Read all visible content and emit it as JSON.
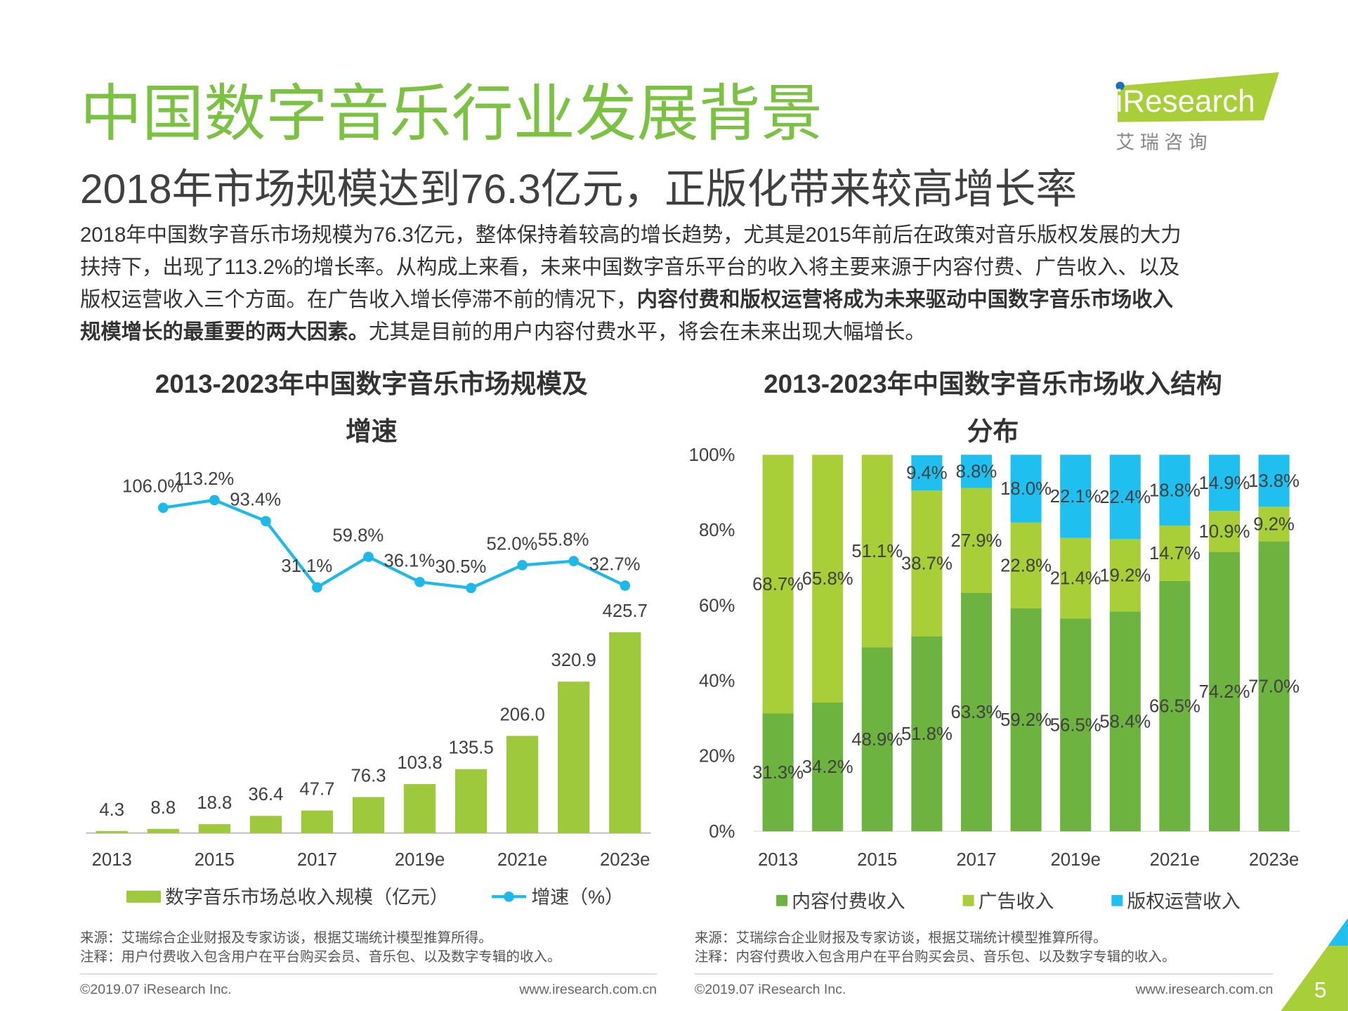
{
  "header": {
    "title": "中国数字音乐行业发展背景",
    "subtitle": "2018年市场规模达到76.3亿元，正版化带来较高增长率",
    "logo": "iResearch",
    "logo_cn": "艾 瑞 咨 询"
  },
  "body": [
    [
      {
        "text": "2018年中国数字音乐市场规模为76.3亿元，整体保持着较高的增长趋势，尤其是2015年前后在政策对音乐版权发展的大力",
        "bold": false
      }
    ],
    [
      {
        "text": "扶持下，出现了113.2%的增长率。从构成上来看，未来中国数字音乐平台的收入将主要来源于内容付费、广告收入、以及",
        "bold": false
      }
    ],
    [
      {
        "text": "版权运营收入三个方面。在广告收入增长停滞不前的情况下，",
        "bold": false
      },
      {
        "text": "内容付费和版权运营将成为未来驱动中国数字音乐市场收入",
        "bold": true
      }
    ],
    [
      {
        "text": "规模增长的最重要的两大因素。",
        "bold": true
      },
      {
        "text": "尤其是目前的用户内容付费水平，将会在未来出现大幅增长。",
        "bold": false
      }
    ]
  ],
  "chart_data": [
    {
      "type": "bar-line",
      "title": [
        "2013-2023年中国数字音乐市场规模及",
        "增速"
      ],
      "categories": [
        "2013",
        null,
        "2015",
        null,
        "2017",
        null,
        "2019e",
        null,
        "2021e",
        null,
        "2023e"
      ],
      "series": [
        {
          "name": "数字音乐市场总收入规模（亿元）",
          "color": "#9ec93c",
          "values": [
            4.3,
            8.8,
            18.8,
            36.4,
            47.7,
            76.3,
            103.8,
            135.5,
            206.0,
            320.9,
            425.7
          ],
          "value_labels": [
            "4.3",
            "8.8",
            "18.8",
            "36.4",
            "47.7",
            "76.3",
            "103.8",
            "135.5",
            "206.0",
            "320.9",
            "425.7"
          ]
        },
        {
          "name": "增速（%）",
          "color": "#1fb8ea",
          "axis": "y2",
          "values": [
            null,
            106.0,
            113.2,
            93.4,
            31.1,
            59.8,
            36.1,
            30.5,
            52.0,
            55.8,
            32.7
          ],
          "value_labels": [
            null,
            "106.0%",
            "113.2%",
            "93.4%",
            "31.1%",
            "59.8%",
            "36.1%",
            "30.5%",
            "52.0%",
            "55.8%",
            "32.7%"
          ]
        }
      ],
      "ylim": [
        0,
        800
      ],
      "y2lim": [
        -200,
        155
      ],
      "legend": "bottom",
      "source": "来源：艾瑞综合企业财报及专家访谈，根据艾瑞统计模型推算所得。",
      "note": "注释：用户付费收入包含用户在平台购买会员、音乐包、以及数字专辑的收入。"
    },
    {
      "type": "stacked-bar",
      "title": [
        "2013-2023年中国数字音乐市场收入结构",
        "分布"
      ],
      "categories": [
        "2013",
        null,
        "2015",
        null,
        "2017",
        null,
        "2019e",
        null,
        "2021e",
        null,
        "2023e"
      ],
      "series": [
        {
          "name": "内容付费收入",
          "color": "#6db33f",
          "values": [
            31.3,
            34.2,
            48.9,
            51.8,
            63.3,
            59.2,
            56.5,
            58.4,
            66.5,
            74.2,
            77.0
          ],
          "value_labels": [
            "31.3%",
            "34.2%",
            "48.9%",
            "51.8%",
            "63.3%",
            "59.2%",
            "56.5%",
            "58.4%",
            "66.5%",
            "74.2%",
            "77.0%"
          ]
        },
        {
          "name": "广告收入",
          "color": "#a8cf38",
          "values": [
            68.7,
            65.8,
            51.1,
            38.7,
            27.9,
            22.8,
            21.4,
            19.2,
            14.7,
            10.9,
            9.2
          ],
          "value_labels": [
            "68.7%",
            "65.8%",
            "51.1%",
            "38.7%",
            "27.9%",
            "22.8%",
            "21.4%",
            "19.2%",
            "14.7%",
            "10.9%",
            "9.2%"
          ]
        },
        {
          "name": "版权运营收入",
          "color": "#1fc0f0",
          "values": [
            null,
            null,
            null,
            9.4,
            8.8,
            18.0,
            22.1,
            22.4,
            18.8,
            14.9,
            13.8
          ],
          "value_labels": [
            null,
            null,
            null,
            "9.4%",
            "8.8%",
            "18.0%",
            "22.1%",
            "22.4%",
            "18.8%",
            "14.9%",
            "13.8%"
          ]
        }
      ],
      "ylim": [
        0,
        100
      ],
      "yticks": [
        {
          "value": 0,
          "label": "0%"
        },
        {
          "value": 20,
          "label": "20%"
        },
        {
          "value": 40,
          "label": "40%"
        },
        {
          "value": 60,
          "label": "60%"
        },
        {
          "value": 80,
          "label": "80%"
        },
        {
          "value": 100,
          "label": "100%"
        }
      ],
      "legend": "bottom",
      "source": "来源：艾瑞综合企业财报及专家访谈，根据艾瑞统计模型推算所得。",
      "note": "注释：内容付费收入包含用户在平台购买会员、音乐包、以及数字专辑的收入。"
    }
  ],
  "footer": {
    "copyright": [
      "©2019.07 iResearch Inc.",
      "©2019.07 iResearch Inc."
    ],
    "url": [
      "www.iresearch.com.cn",
      "www.iresearch.com.cn"
    ],
    "page": "5"
  }
}
